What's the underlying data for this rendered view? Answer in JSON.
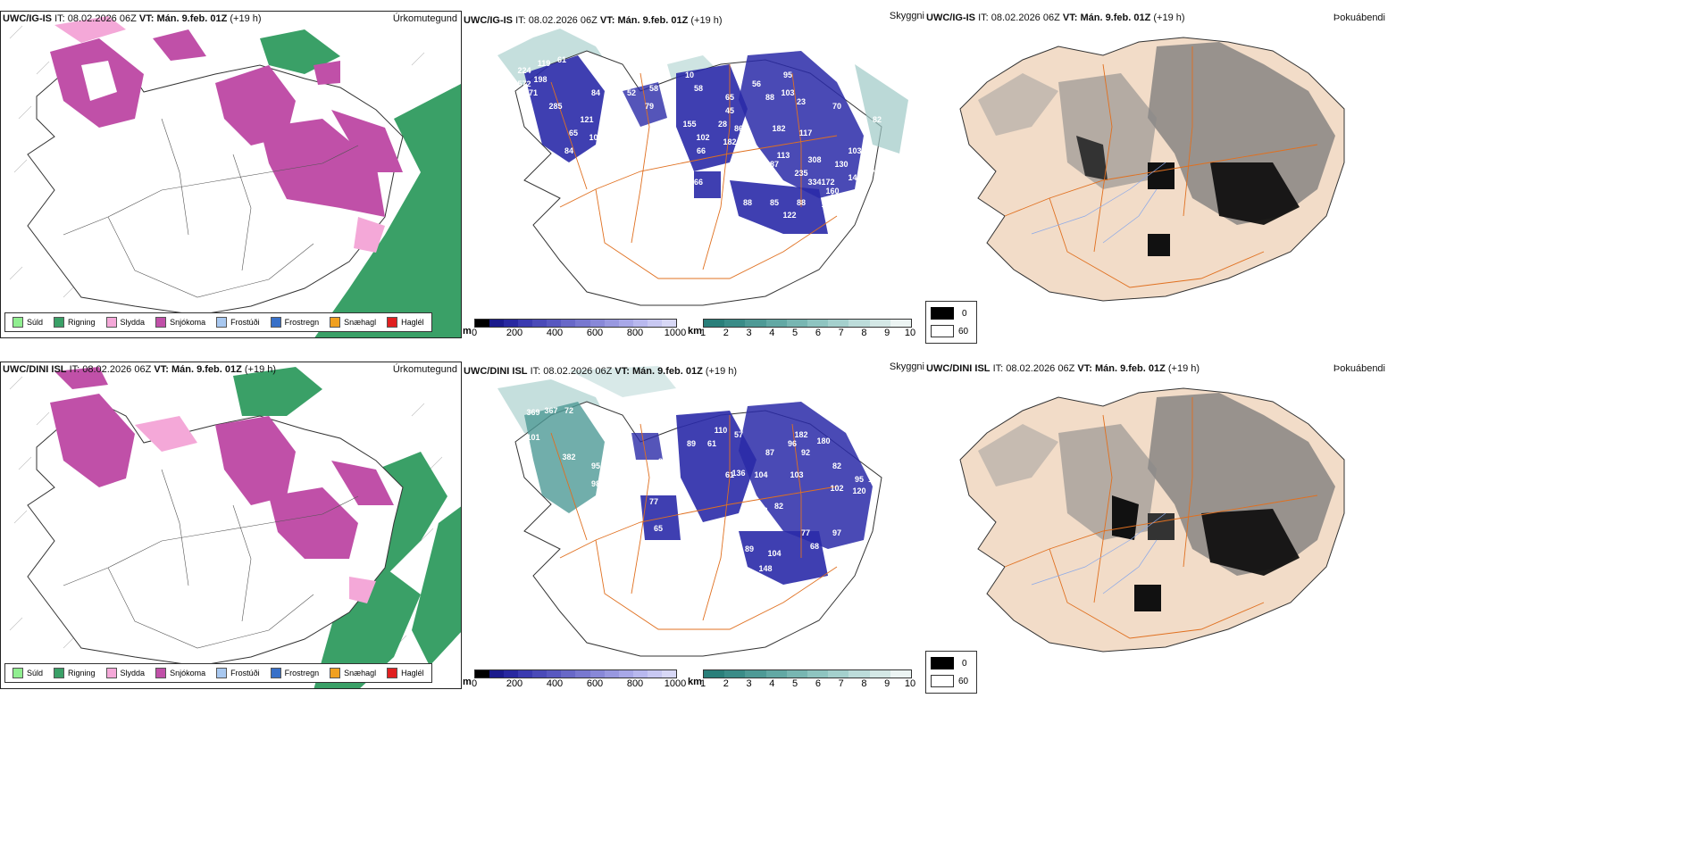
{
  "rows": [
    {
      "model": "UWC/IG-IS",
      "it_label": "IT:",
      "it_value": "08.02.2026 06Z",
      "vt_label": "VT:",
      "vt_value": "Mán. 9.feb. 01Z",
      "lead": "(+19 h)",
      "panels": {
        "precip_title": "Úrkomutegund",
        "visibility_title": "Skyggni",
        "fog_title": "Þokuábendi"
      },
      "cloud_base_labels": [
        "224",
        "119",
        "61",
        "572",
        "198",
        "71",
        "285",
        "84",
        "121",
        "65",
        "101",
        "84",
        "52",
        "58",
        "79",
        "10",
        "58",
        "155",
        "102",
        "66",
        "182",
        "28",
        "86",
        "45",
        "65",
        "56",
        "95",
        "88",
        "103",
        "23",
        "70",
        "82",
        "182",
        "117",
        "113",
        "308",
        "87",
        "235",
        "334",
        "130",
        "172",
        "148",
        "274",
        "138",
        "73",
        "53",
        "66",
        "728",
        "94",
        "88",
        "85",
        "88",
        "122",
        "160",
        "161",
        "131",
        "33",
        "24",
        "103"
      ]
    },
    {
      "model": "UWC/DINI ISL",
      "it_label": "IT:",
      "it_value": "08.02.2026 06Z",
      "vt_label": "VT:",
      "vt_value": "Mán. 9.feb. 01Z",
      "lead": "(+19 h)",
      "panels": {
        "precip_title": "Úrkomutegund",
        "visibility_title": "Skyggni",
        "fog_title": "Þokuábendi"
      },
      "cloud_base_labels": [
        "369",
        "367",
        "72",
        "101",
        "382",
        "95",
        "98",
        "60",
        "77",
        "65",
        "72",
        "86",
        "89",
        "61",
        "110",
        "57",
        "61",
        "136",
        "104",
        "87",
        "96",
        "182",
        "180",
        "92",
        "103",
        "102",
        "82",
        "95",
        "120",
        "133",
        "121",
        "82",
        "77",
        "97",
        "68",
        "89",
        "104",
        "148",
        "18"
      ]
    }
  ],
  "precip_legend": [
    {
      "label": "Súld",
      "color": "#90ee90"
    },
    {
      "label": "Rigning",
      "color": "#3aa067"
    },
    {
      "label": "Slydda",
      "color": "#f4a8d8"
    },
    {
      "label": "Snjókoma",
      "color": "#c050a8"
    },
    {
      "label": "Frostúði",
      "color": "#a8c8f0"
    },
    {
      "label": "Frostregn",
      "color": "#3870c8"
    },
    {
      "label": "Snæhagl",
      "color": "#f0a020"
    },
    {
      "label": "Haglél",
      "color": "#e02020"
    }
  ],
  "cloud_base_bar": {
    "unit": "m",
    "ticks": [
      "0",
      "200",
      "400",
      "600",
      "800",
      "1000"
    ],
    "colors": [
      "#000000",
      "#1a1a8c",
      "#2828a0",
      "#3a3ab0",
      "#4a4ab8",
      "#5858c0",
      "#6868c8",
      "#7878d0",
      "#8888d8",
      "#9898e0",
      "#a8a8e8",
      "#b8b8ee",
      "#c8c8f2",
      "#d8d8f6"
    ]
  },
  "visibility_bar": {
    "unit": "km",
    "ticks": [
      "1",
      "2",
      "3",
      "4",
      "5",
      "6",
      "7",
      "8",
      "9",
      "10"
    ],
    "colors": [
      "#2a7f7a",
      "#3a8c88",
      "#4e9a96",
      "#62a8a4",
      "#78b6b2",
      "#8ec4c0",
      "#a4d0cd",
      "#bcdcda",
      "#d4e8e6",
      "#ecf4f3"
    ]
  },
  "fog_legend": {
    "top": "0",
    "bottom": "60"
  },
  "colors": {
    "rain": "#3aa067",
    "snow": "#c050a8",
    "sleet": "#f4a8d8",
    "drizzle": "#90ee90",
    "cloudbase": "#2a2aa8",
    "visibility": "#4e9a96",
    "roads": "#e07020",
    "land_tan": "#f2dcc8",
    "rivers": "#8aa8e8"
  }
}
